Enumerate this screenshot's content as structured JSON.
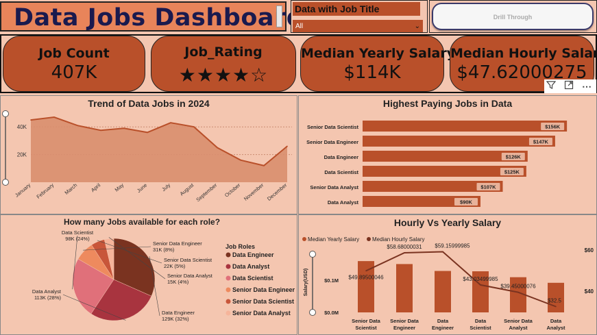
{
  "header": {
    "title": "Data Jobs Dashboard",
    "slicer_title": "Data with Job Title",
    "slicer_value": "All",
    "drill_button": "Drill Through"
  },
  "kpis": {
    "job_count_label": "Job Count",
    "job_count_value": "407K",
    "job_rating_label": "Job_Rating",
    "job_rating_stars": "★★★★☆",
    "median_yearly_label": "Median Yearly Salary",
    "median_yearly_value": "$114K",
    "median_hourly_label": "Median Hourly Salary",
    "median_hourly_value": "$47.62000275"
  },
  "colors": {
    "background": "#f4c6b0",
    "accent": "#b9502a",
    "title_bg": "#e8845a",
    "title_text": "#1a1a4e"
  },
  "chart_data": [
    {
      "type": "area",
      "title": "Trend of Data Jobs in 2024",
      "categories": [
        "January",
        "February",
        "March",
        "April",
        "May",
        "June",
        "July",
        "August",
        "September",
        "October",
        "November",
        "December"
      ],
      "values": [
        45000,
        47000,
        41000,
        37500,
        39000,
        36000,
        43000,
        40000,
        25000,
        16000,
        12000,
        26000
      ],
      "yticks": [
        "20K",
        "40K"
      ],
      "ylim": [
        0,
        50000
      ]
    },
    {
      "type": "bar",
      "orientation": "horizontal",
      "title": "Highest Paying Jobs in Data",
      "categories": [
        "Senior Data Scientist",
        "Senior Data Engineer",
        "Data Engineer",
        "Data Scientist",
        "Senior Data Analyst",
        "Data Analyst"
      ],
      "values": [
        156000,
        147000,
        126000,
        125000,
        107000,
        90000
      ],
      "labels": [
        "$156K",
        "$147K",
        "$126K",
        "$125K",
        "$107K",
        "$90K"
      ]
    },
    {
      "type": "pie",
      "title": "How many Jobs available for each role?",
      "legend_title": "Job Roles",
      "legend": [
        "Data Engineer",
        "Data Analyst",
        "Data Scientist",
        "Senior Data Engineer",
        "Senior Data Scientist",
        "Senior Data Analyst"
      ],
      "slices": [
        {
          "name": "Data Engineer",
          "value": 129000,
          "label_name": "Data Engineer",
          "label_value": "129K (32%)",
          "color": "#7a3320"
        },
        {
          "name": "Data Analyst",
          "value": 113000,
          "label_name": "Data Analyst",
          "label_value": "113K (28%)",
          "color": "#a8343f"
        },
        {
          "name": "Data Scientist",
          "value": 98000,
          "label_name": "Data Scientist",
          "label_value": "98K (24%)",
          "color": "#e0707a"
        },
        {
          "name": "Senior Data Engineer",
          "value": 31000,
          "label_name": "Senior Data Engineer",
          "label_value": "31K (8%)",
          "color": "#ee8a5e"
        },
        {
          "name": "Senior Data Scientist",
          "value": 22000,
          "label_name": "Senior Data Scientist",
          "label_value": "22K (5%)",
          "color": "#c8563a"
        },
        {
          "name": "Senior Data Analyst",
          "value": 15000,
          "label_name": "Senior Data Analyst",
          "label_value": "15K (4%)",
          "color": "#f6b49a"
        }
      ]
    },
    {
      "type": "bar+line",
      "title": "Hourly Vs Yearly Salary",
      "categories": [
        [
          "Senior Data",
          "Scientist"
        ],
        [
          "Senior Data",
          "Engineer"
        ],
        [
          "Data",
          "Engineer"
        ],
        [
          "Data",
          "Scientist"
        ],
        [
          "Senior Data",
          "Analyst"
        ],
        [
          "Data",
          "Analyst"
        ]
      ],
      "series": [
        {
          "name": "Median Yearly Salary",
          "values": [
            156000,
            147000,
            126000,
            125000,
            107000,
            90000
          ]
        },
        {
          "name": "Median Hourly Salary",
          "values": [
            49.89500046,
            58.68000031,
            59.15999985,
            43.03499985,
            39.45000076,
            32.5
          ],
          "labels": [
            "$49.89500046",
            "$58.68000031",
            "$59.15999985",
            "$43.03499985",
            "$39.45000076",
            "$32.5"
          ]
        }
      ],
      "ylabel": "Salary(USD)",
      "left_ticks": [
        "$0.0M",
        "$0.1M"
      ],
      "right_ticks": [
        "$40",
        "$60"
      ]
    }
  ]
}
